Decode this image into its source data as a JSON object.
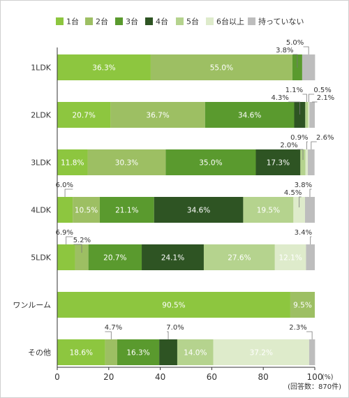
{
  "chart_data": {
    "type": "bar",
    "orientation": "horizontal",
    "stacked": true,
    "categories": [
      "1LDK",
      "2LDK",
      "3LDK",
      "4LDK",
      "5LDK",
      "ワンルーム",
      "その他"
    ],
    "series": [
      {
        "name": "1台",
        "color": "#8dc63f",
        "values": [
          36.3,
          20.7,
          11.8,
          6.0,
          6.9,
          90.5,
          18.6
        ]
      },
      {
        "name": "2台",
        "color": "#9dbf63",
        "values": [
          55.0,
          36.7,
          30.3,
          10.5,
          5.2,
          9.5,
          4.7
        ]
      },
      {
        "name": "3台",
        "color": "#5a9a2e",
        "values": [
          3.8,
          34.6,
          35.0,
          21.1,
          20.7,
          0,
          16.3
        ]
      },
      {
        "name": "4台",
        "color": "#2e5423",
        "values": [
          0,
          4.3,
          17.3,
          34.6,
          24.1,
          0,
          7.0
        ]
      },
      {
        "name": "5台",
        "color": "#b5d38e",
        "values": [
          0,
          1.1,
          2.0,
          19.5,
          27.6,
          0,
          14.0
        ]
      },
      {
        "name": "6台以上",
        "color": "#deebcb",
        "values": [
          0,
          0.5,
          0.9,
          4.5,
          12.1,
          0,
          37.2
        ]
      },
      {
        "name": "持っていない",
        "color": "#bdbdbd",
        "values": [
          5.0,
          2.1,
          2.6,
          3.8,
          3.4,
          0,
          2.3
        ]
      }
    ],
    "data_labels": [
      {
        "row": 0,
        "series": 0,
        "text": "36.3%",
        "inside": true
      },
      {
        "row": 0,
        "series": 1,
        "text": "55.0%",
        "inside": true
      },
      {
        "row": 0,
        "series": 2,
        "text": "3.8%",
        "inside": false
      },
      {
        "row": 0,
        "series": 6,
        "text": "5.0%",
        "inside": false
      },
      {
        "row": 1,
        "series": 0,
        "text": "20.7%",
        "inside": true
      },
      {
        "row": 1,
        "series": 1,
        "text": "36.7%",
        "inside": true
      },
      {
        "row": 1,
        "series": 2,
        "text": "34.6%",
        "inside": true
      },
      {
        "row": 1,
        "series": 3,
        "text": "4.3%",
        "inside": false
      },
      {
        "row": 1,
        "series": 4,
        "text": "1.1%",
        "inside": false
      },
      {
        "row": 1,
        "series": 5,
        "text": "0.5%",
        "inside": false
      },
      {
        "row": 1,
        "series": 6,
        "text": "2.1%",
        "inside": false
      },
      {
        "row": 2,
        "series": 0,
        "text": "11.8%",
        "inside": true
      },
      {
        "row": 2,
        "series": 1,
        "text": "30.3%",
        "inside": true
      },
      {
        "row": 2,
        "series": 2,
        "text": "35.0%",
        "inside": true
      },
      {
        "row": 2,
        "series": 3,
        "text": "17.3%",
        "inside": true
      },
      {
        "row": 2,
        "series": 4,
        "text": "2.0%",
        "inside": false
      },
      {
        "row": 2,
        "series": 5,
        "text": "0.9%",
        "inside": false
      },
      {
        "row": 2,
        "series": 6,
        "text": "2.6%",
        "inside": false
      },
      {
        "row": 3,
        "series": 0,
        "text": "6.0%",
        "inside": false
      },
      {
        "row": 3,
        "series": 1,
        "text": "10.5%",
        "inside": true
      },
      {
        "row": 3,
        "series": 2,
        "text": "21.1%",
        "inside": true
      },
      {
        "row": 3,
        "series": 3,
        "text": "34.6%",
        "inside": true
      },
      {
        "row": 3,
        "series": 4,
        "text": "19.5%",
        "inside": true
      },
      {
        "row": 3,
        "series": 5,
        "text": "4.5%",
        "inside": false
      },
      {
        "row": 3,
        "series": 6,
        "text": "3.8%",
        "inside": false
      },
      {
        "row": 4,
        "series": 0,
        "text": "6.9%",
        "inside": false
      },
      {
        "row": 4,
        "series": 1,
        "text": "5.2%",
        "inside": false
      },
      {
        "row": 4,
        "series": 2,
        "text": "20.7%",
        "inside": true
      },
      {
        "row": 4,
        "series": 3,
        "text": "24.1%",
        "inside": true
      },
      {
        "row": 4,
        "series": 4,
        "text": "27.6%",
        "inside": true
      },
      {
        "row": 4,
        "series": 5,
        "text": "12.1%",
        "inside": true
      },
      {
        "row": 4,
        "series": 6,
        "text": "3.4%",
        "inside": false
      },
      {
        "row": 5,
        "series": 0,
        "text": "90.5%",
        "inside": true
      },
      {
        "row": 5,
        "series": 1,
        "text": "9.5%",
        "inside": true
      },
      {
        "row": 6,
        "series": 0,
        "text": "18.6%",
        "inside": true
      },
      {
        "row": 6,
        "series": 1,
        "text": "4.7%",
        "inside": false
      },
      {
        "row": 6,
        "series": 2,
        "text": "16.3%",
        "inside": true
      },
      {
        "row": 6,
        "series": 3,
        "text": "7.0%",
        "inside": false
      },
      {
        "row": 6,
        "series": 4,
        "text": "14.0%",
        "inside": true
      },
      {
        "row": 6,
        "series": 5,
        "text": "37.2%",
        "inside": true
      },
      {
        "row": 6,
        "series": 6,
        "text": "2.3%",
        "inside": false
      }
    ],
    "xlim": [
      0,
      100
    ],
    "x_ticks": [
      0,
      20,
      40,
      60,
      80,
      100
    ],
    "x_unit": "(%)",
    "note": "(回答数：870件)",
    "legend_position": "top",
    "grid": false
  }
}
